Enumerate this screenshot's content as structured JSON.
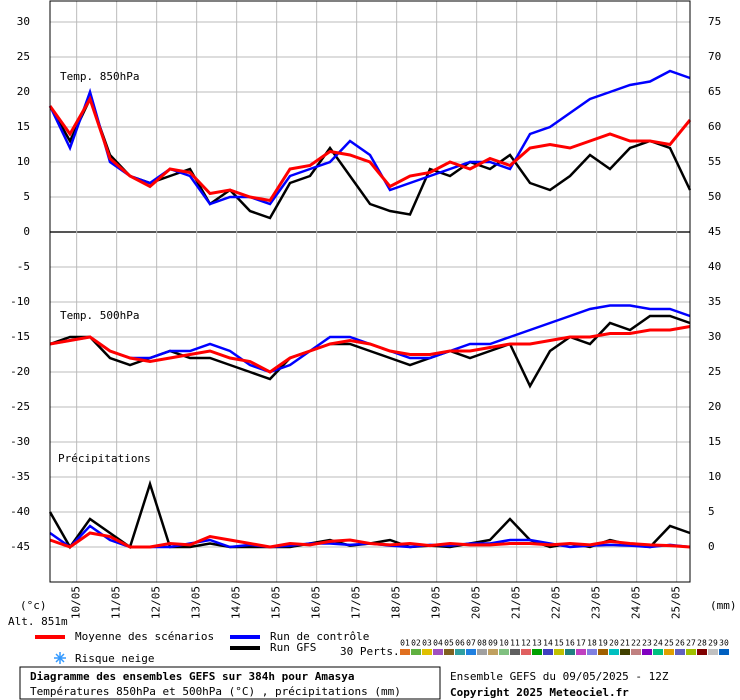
{
  "chart_data": {
    "type": "line",
    "title": "Diagramme des ensembles GEFS sur 384h pour Amasya",
    "subtitle": "Températures 850hPa et 500hPa (°C) , précipitations (mm)",
    "run_label": "Ensemble GEFS du 09/05/2025 - 12Z",
    "copyright": "Copyright 2025 Meteociel.fr",
    "altitude": "Alt. 851m",
    "y_unit": "(°c)",
    "y2_unit": "(mm)",
    "panel_labels": [
      "Temp. 850hPa",
      "Temp. 500hPa",
      "Précipitations"
    ],
    "snow_label": "Risque neige",
    "perturbations": {
      "label": "30 Perts.",
      "names": [
        "01",
        "02",
        "03",
        "04",
        "05",
        "06",
        "07",
        "08",
        "09",
        "10",
        "11",
        "12",
        "13",
        "14",
        "15",
        "16",
        "17",
        "18",
        "19",
        "20",
        "21",
        "22",
        "23",
        "24",
        "25",
        "26",
        "27",
        "28",
        "29",
        "30"
      ],
      "colors": [
        "#e07020",
        "#60b040",
        "#e0c000",
        "#a050c0",
        "#806020",
        "#30a0a0",
        "#2080e0",
        "#a0a0a0",
        "#c0a060",
        "#80c080",
        "#606060",
        "#e06060",
        "#00a000",
        "#4040c0",
        "#c0c000",
        "#208080",
        "#c040c0",
        "#8080e0",
        "#a06000",
        "#00c0c0",
        "#404000",
        "#c08080",
        "#8000c0",
        "#00c080",
        "#e0a000",
        "#6060c0",
        "#a0c000",
        "#800000",
        "#c0c0c0",
        "#0060c0"
      ]
    },
    "x": [
      0,
      12,
      24,
      36,
      48,
      60,
      72,
      84,
      96,
      108,
      120,
      132,
      144,
      156,
      168,
      180,
      192,
      204,
      216,
      228,
      240,
      252,
      264,
      276,
      288,
      300,
      312,
      324,
      336,
      348,
      360,
      372,
      384
    ],
    "xlim": [
      0,
      384
    ],
    "xticks": [
      {
        "value": 16,
        "label": "10/05"
      },
      {
        "value": 40,
        "label": "11/05"
      },
      {
        "value": 64,
        "label": "12/05"
      },
      {
        "value": 88,
        "label": "13/05"
      },
      {
        "value": 112,
        "label": "14/05"
      },
      {
        "value": 136,
        "label": "15/05"
      },
      {
        "value": 160,
        "label": "16/05"
      },
      {
        "value": 184,
        "label": "17/05"
      },
      {
        "value": 208,
        "label": "18/05"
      },
      {
        "value": 232,
        "label": "19/05"
      },
      {
        "value": 256,
        "label": "20/05"
      },
      {
        "value": 280,
        "label": "21/05"
      },
      {
        "value": 304,
        "label": "22/05"
      },
      {
        "value": 328,
        "label": "23/05"
      },
      {
        "value": 352,
        "label": "24/05"
      },
      {
        "value": 376,
        "label": "25/05"
      }
    ],
    "ylim": [
      -50,
      33
    ],
    "yticks": [
      -45,
      -40,
      -35,
      -30,
      -25,
      -20,
      -15,
      -10,
      -5,
      0,
      5,
      10,
      15,
      20,
      25,
      30
    ],
    "y2lim": [
      -5,
      78
    ],
    "y2ticks": [
      0,
      5,
      10,
      15,
      20,
      25,
      30,
      35,
      40,
      45,
      50,
      55,
      60,
      65,
      70,
      75
    ],
    "grid": true,
    "series": [
      {
        "name": "Moyenne des scénarios",
        "color": "#ff0000",
        "t850": [
          18,
          14,
          19,
          10.5,
          8,
          6.5,
          9,
          8.5,
          5.5,
          6,
          5,
          4.5,
          9,
          9.5,
          11.5,
          11,
          10,
          6.5,
          8,
          8.5,
          10,
          9,
          10.5,
          9.5,
          12,
          12.5,
          12,
          13,
          14,
          13,
          13,
          12.5,
          16
        ],
        "t500": [
          -16,
          -15.5,
          -15,
          -17,
          -18,
          -18.5,
          -18,
          -17.5,
          -17,
          -18,
          -18.5,
          -20,
          -18,
          -17,
          -16,
          -15.5,
          -16,
          -17,
          -17.5,
          -17.5,
          -17,
          -17,
          -16.5,
          -16,
          -16,
          -15.5,
          -15,
          -15,
          -14.5,
          -14.5,
          -14,
          -14,
          -13.5
        ],
        "precip": [
          1,
          0,
          2,
          1.5,
          0,
          0,
          0.5,
          0.3,
          1.5,
          1,
          0.5,
          0,
          0.5,
          0.3,
          0.8,
          1,
          0.5,
          0.3,
          0.5,
          0.2,
          0.5,
          0.3,
          0.3,
          0.5,
          0.5,
          0.3,
          0.5,
          0.3,
          0.8,
          0.5,
          0.3,
          0.2,
          0
        ]
      },
      {
        "name": "Run de contrôle",
        "color": "#0000ff",
        "t850": [
          18,
          12,
          20,
          10,
          8,
          7,
          9,
          8,
          4,
          5,
          5,
          4,
          8,
          9,
          10,
          13,
          11,
          6,
          7,
          8,
          9,
          10,
          10,
          9,
          14,
          15,
          17,
          19,
          20,
          21,
          21.5,
          23,
          22
        ],
        "t500": [
          -16,
          -15.5,
          -15,
          -17,
          -18,
          -18,
          -17,
          -17,
          -16,
          -17,
          -19,
          -20,
          -19,
          -17,
          -15,
          -15,
          -16,
          -17,
          -18,
          -18,
          -17,
          -16,
          -16,
          -15,
          -14,
          -13,
          -12,
          -11,
          -10.5,
          -10.5,
          -11,
          -11,
          -12
        ],
        "precip": [
          2,
          0,
          3,
          1,
          0,
          0,
          0,
          0.5,
          1,
          0,
          0.3,
          0,
          0.2,
          0.5,
          0.5,
          0.3,
          0.5,
          0.2,
          0,
          0.3,
          0.2,
          0.5,
          0.5,
          1,
          1,
          0.5,
          0,
          0.2,
          0.3,
          0.2,
          0,
          0.3,
          0
        ]
      },
      {
        "name": "Run GFS",
        "color": "#000000",
        "t850": [
          18,
          13,
          19,
          11,
          8,
          7,
          8,
          9,
          4,
          6,
          3,
          2,
          7,
          8,
          12,
          8,
          4,
          3,
          2.5,
          9,
          8,
          10,
          9,
          11,
          7,
          6,
          8,
          11,
          9,
          12,
          13,
          12,
          6
        ],
        "t500": [
          -16,
          -15,
          -15,
          -18,
          -19,
          -18,
          -17,
          -18,
          -18,
          -19,
          -20,
          -21,
          -18,
          -17,
          -16,
          -16,
          -17,
          -18,
          -19,
          -18,
          -17,
          -18,
          -17,
          -16,
          -22,
          -17,
          -15,
          -16,
          -13,
          -14,
          -12,
          -12,
          -13
        ],
        "precip": [
          5,
          0,
          4,
          2,
          0,
          9,
          0,
          0,
          0.5,
          0,
          0,
          0,
          0,
          0.5,
          1,
          0.2,
          0.5,
          1,
          0,
          0.2,
          0,
          0.5,
          1,
          4,
          1,
          0,
          0.5,
          0,
          1,
          0.3,
          0,
          3,
          2
        ]
      }
    ]
  }
}
